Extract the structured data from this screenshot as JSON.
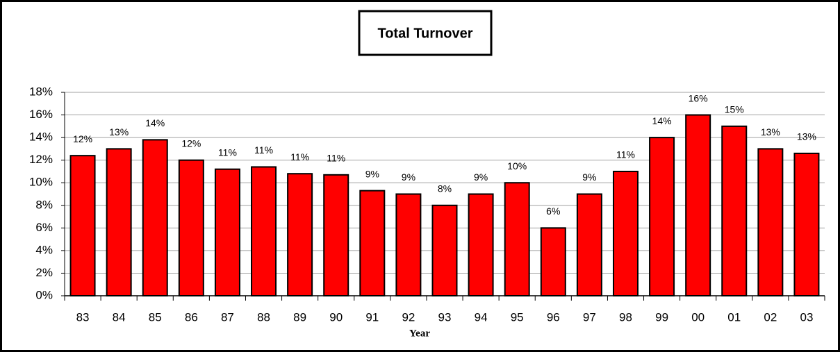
{
  "chart_data": {
    "type": "bar",
    "title": "Total Turnover",
    "x_label": "Year",
    "categories": [
      "83",
      "84",
      "85",
      "86",
      "87",
      "88",
      "89",
      "90",
      "91",
      "92",
      "93",
      "94",
      "95",
      "96",
      "97",
      "98",
      "99",
      "00",
      "01",
      "02",
      "03"
    ],
    "values": [
      12.4,
      13,
      13.8,
      12,
      11.2,
      11.4,
      10.8,
      10.7,
      9.3,
      9,
      8,
      9,
      10,
      6,
      9,
      11,
      14,
      16,
      15,
      13,
      12.6
    ],
    "value_labels": [
      "12%",
      "13%",
      "14%",
      "12%",
      "11%",
      "11%",
      "11%",
      "11%",
      "9%",
      "9%",
      "8%",
      "9%",
      "10%",
      "6%",
      "9%",
      "11%",
      "14%",
      "16%",
      "15%",
      "13%",
      "13%"
    ],
    "color": "#ff0000",
    "ylim": [
      0,
      18
    ],
    "yticks": [
      {
        "value": 0,
        "label": "0%"
      },
      {
        "value": 2,
        "label": "2%"
      },
      {
        "value": 4,
        "label": "4%"
      },
      {
        "value": 6,
        "label": "6%"
      },
      {
        "value": 8,
        "label": "8%"
      },
      {
        "value": 10,
        "label": "10%"
      },
      {
        "value": 12,
        "label": "12%"
      },
      {
        "value": 14,
        "label": "14%"
      },
      {
        "value": 16,
        "label": "16%"
      },
      {
        "value": 18,
        "label": "18%"
      }
    ],
    "grid": true
  }
}
